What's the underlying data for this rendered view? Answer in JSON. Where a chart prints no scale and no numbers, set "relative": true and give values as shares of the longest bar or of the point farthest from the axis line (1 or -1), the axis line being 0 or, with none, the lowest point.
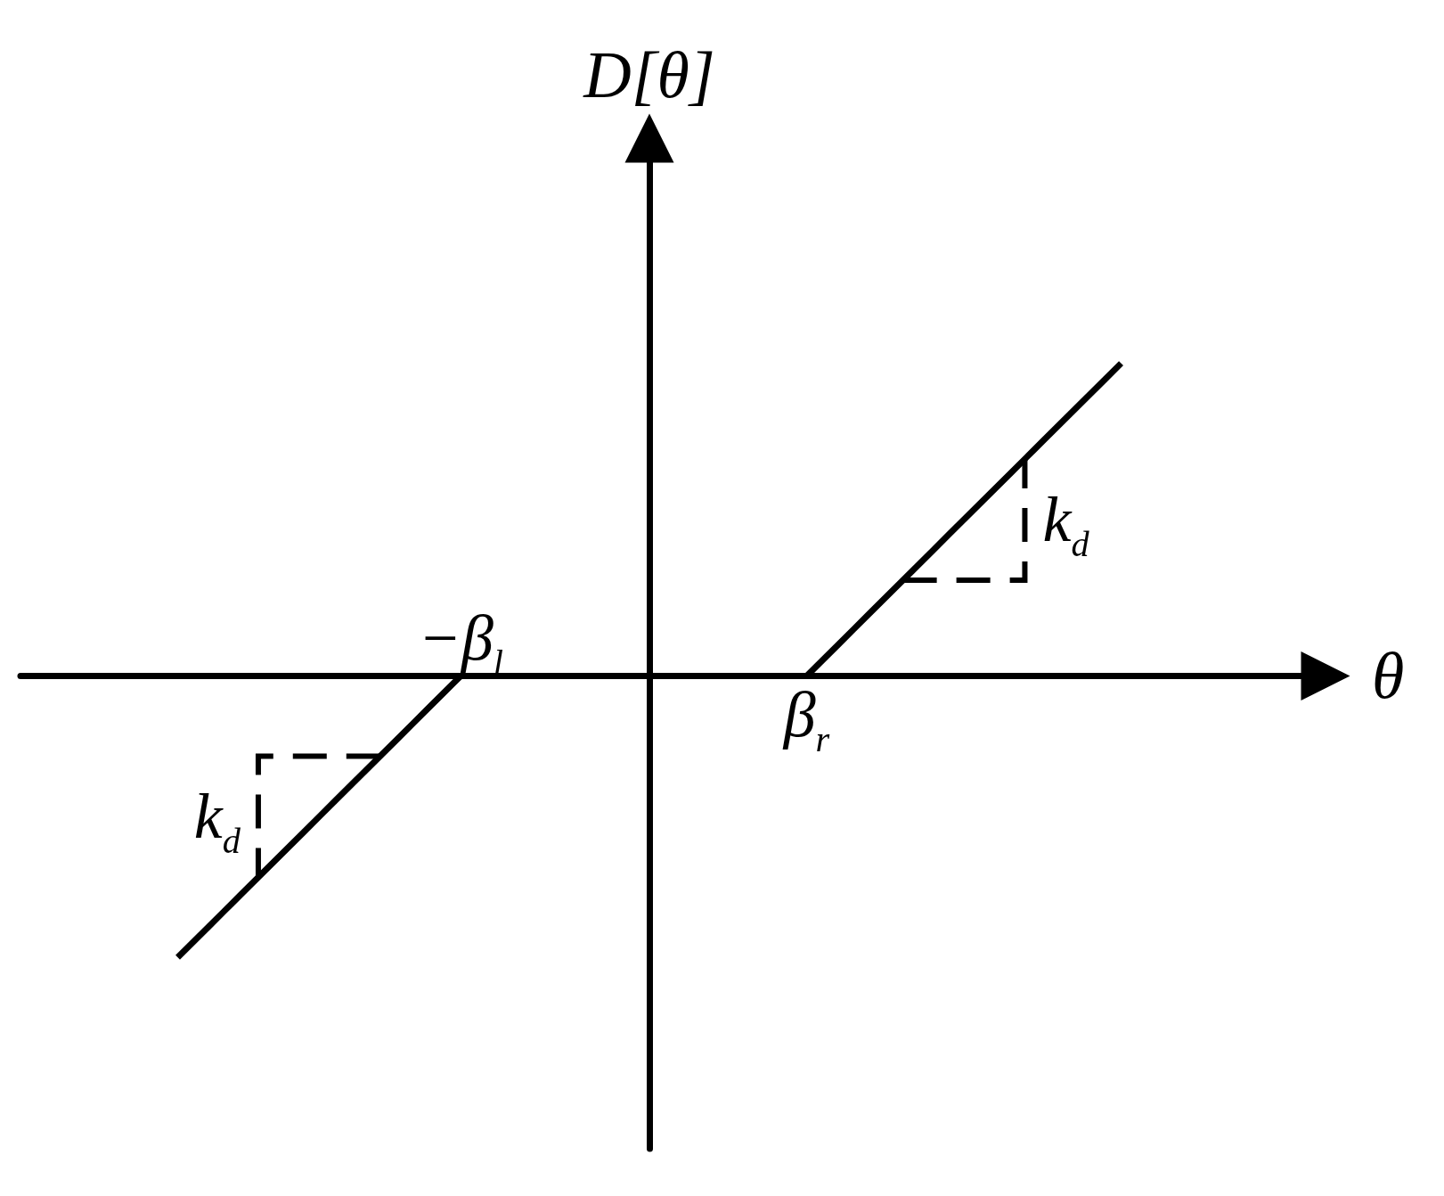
{
  "chart_data": {
    "type": "line",
    "xlabel": "θ",
    "ylabel": "D[θ]",
    "relative": true,
    "categories": [
      null,
      null,
      null,
      null,
      null,
      null,
      null,
      null,
      null,
      null,
      null,
      null,
      null,
      null,
      null,
      null,
      null,
      null,
      null,
      null,
      null,
      null,
      null,
      null,
      null,
      null,
      null,
      null,
      null,
      null,
      null,
      null,
      null,
      null,
      null,
      null,
      null,
      null,
      null,
      null,
      null,
      null,
      null,
      null,
      null,
      null,
      null,
      null,
      null,
      null,
      null,
      null,
      null,
      null,
      null,
      null,
      null,
      null,
      null,
      null,
      null,
      null,
      null,
      null,
      null,
      null,
      null,
      null,
      null,
      null,
      null,
      null,
      null,
      null,
      null,
      null,
      null,
      null,
      null,
      null,
      null,
      null,
      null,
      null
    ],
    "series": [
      {
        "color": "#000000",
        "values": [
          null,
          null,
          null,
          null,
          null,
          null,
          null,
          null,
          null,
          null,
          -0.9,
          -0.85,
          -0.8,
          -0.75,
          -0.7,
          -0.65,
          -0.6,
          -0.55,
          -0.5,
          -0.45,
          -0.4,
          -0.35,
          -0.3,
          -0.25,
          -0.2,
          -0.15,
          -0.1,
          -0.05,
          0,
          null,
          null,
          null,
          null,
          null,
          null,
          null,
          null,
          null,
          null,
          null,
          null,
          null,
          null,
          null,
          null,
          null,
          null,
          null,
          null,
          null,
          null,
          null,
          null,
          null,
          null,
          null,
          null,
          null,
          null,
          null,
          null,
          null,
          null,
          null,
          null,
          null,
          null,
          null,
          null,
          null,
          null,
          null,
          null,
          null,
          null,
          null,
          null,
          null,
          null,
          null,
          null,
          null,
          null,
          null
        ]
      },
      {
        "color": "#000000",
        "values": [
          null,
          null,
          null,
          null,
          null,
          null,
          null,
          null,
          null,
          null,
          null,
          null,
          null,
          null,
          null,
          null,
          null,
          null,
          null,
          null,
          null,
          null,
          null,
          null,
          null,
          null,
          null,
          null,
          null,
          null,
          null,
          null,
          null,
          null,
          null,
          null,
          null,
          null,
          null,
          null,
          null,
          null,
          null,
          null,
          null,
          null,
          null,
          null,
          null,
          null,
          0,
          0.05,
          0.1,
          0.15,
          0.2,
          0.25,
          0.3,
          0.35,
          0.4,
          0.45,
          0.5,
          0.55,
          0.6,
          0.65,
          0.7,
          0.75,
          0.8,
          0.85,
          0.9,
          0.95,
          1,
          null,
          null,
          null,
          null,
          null,
          null,
          null,
          null,
          null,
          null,
          null,
          null,
          null
        ]
      }
    ],
    "marker": "none",
    "line_style": "solid",
    "annotations": [
      {
        "text": "−β$_{l}$",
        "y": 0
      },
      {
        "text": "β$_{r}$",
        "y": 0
      },
      "k$_{d}$",
      "k$_{d}$"
    ]
  }
}
